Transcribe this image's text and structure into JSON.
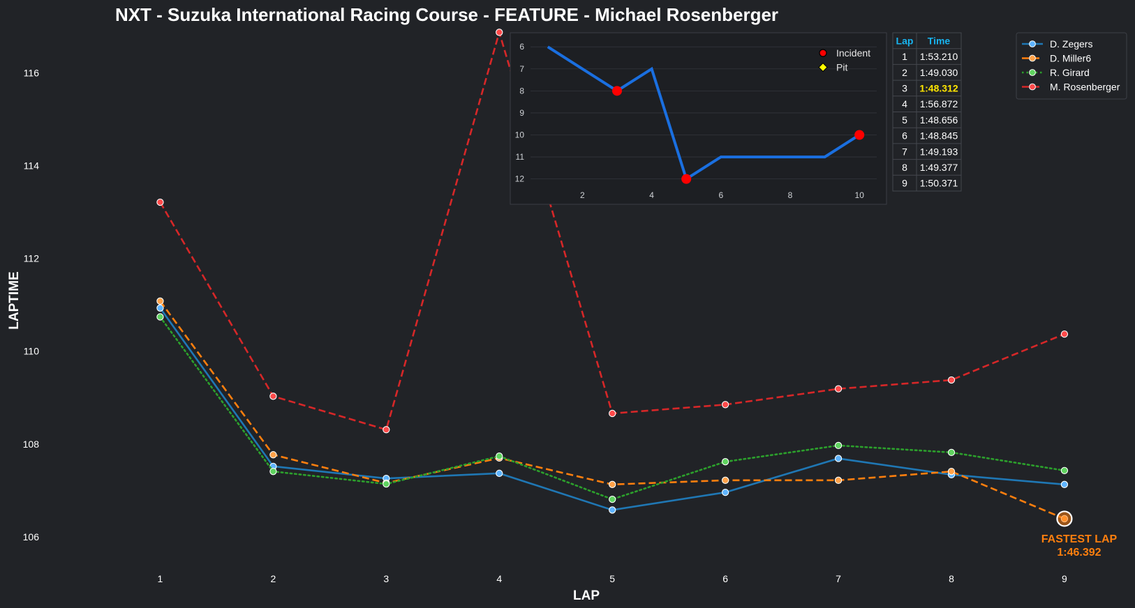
{
  "chart_data": [
    {
      "type": "line",
      "title": "NXT - Suzuka International Racing Course - FEATURE - Michael Rosenberger",
      "xlabel": "LAP",
      "ylabel": "LAPTIME",
      "categories": [
        1,
        2,
        3,
        4,
        5,
        6,
        7,
        8,
        9
      ],
      "xlim": [
        0.25,
        9.55
      ],
      "ylim": [
        105.4,
        116.95
      ],
      "yticks": [
        106,
        108,
        110,
        112,
        114,
        116
      ],
      "grid": false,
      "legend_position": "top-right",
      "series": [
        {
          "name": "D. Zegers",
          "color": "#1f77b4",
          "marker_color": "#5fb4ff",
          "line_style": "solid",
          "values": [
            110.93,
            107.52,
            107.26,
            107.37,
            106.58,
            106.96,
            107.69,
            107.34,
            107.13
          ]
        },
        {
          "name": "D. Miller6",
          "color": "#ff7f0e",
          "marker_color": "#ffa24a",
          "line_style": "dashed",
          "values": [
            111.08,
            107.77,
            107.16,
            107.7,
            107.13,
            107.22,
            107.22,
            107.41,
            106.392
          ]
        },
        {
          "name": "R. Girard",
          "color": "#2ca02c",
          "marker_color": "#5fd35f",
          "line_style": "dotted",
          "values": [
            110.74,
            107.41,
            107.14,
            107.74,
            106.81,
            107.62,
            107.97,
            107.82,
            107.43
          ]
        },
        {
          "name": "M. Rosenberger",
          "color": "#d62728",
          "marker_color": "#ff4a4a",
          "line_style": "dashed",
          "values": [
            113.21,
            109.03,
            108.31,
            116.87,
            108.66,
            108.85,
            109.19,
            109.38,
            110.37
          ]
        }
      ],
      "annotation": {
        "series": "D. Miller6",
        "lap": 9,
        "value": 106.392,
        "line1": "FASTEST LAP",
        "line2": "1:46.392",
        "color": "#ff7f0e"
      }
    },
    {
      "type": "line",
      "title": "",
      "xlabel": "",
      "ylabel": "",
      "x": [
        1,
        2,
        3,
        4,
        5,
        6,
        7,
        8,
        9,
        10
      ],
      "values": [
        6,
        7,
        8,
        7,
        12,
        11,
        11,
        11,
        11,
        10
      ],
      "xlim": [
        0.5,
        10.5
      ],
      "ylim": [
        12.55,
        5.55
      ],
      "y_inverted": true,
      "xticks": [
        2,
        4,
        6,
        8,
        10
      ],
      "yticks": [
        6,
        7,
        8,
        9,
        10,
        11,
        12
      ],
      "grid": true,
      "line_color": "#1a6fe0",
      "incidents": [
        3,
        5,
        10
      ],
      "pits": [],
      "legend_position": "top-right",
      "legend": [
        {
          "label": "Incident",
          "color": "#ff0000",
          "shape": "circle"
        },
        {
          "label": "Pit",
          "color": "#ffff00",
          "shape": "diamond"
        }
      ]
    },
    {
      "type": "table",
      "columns": [
        "Lap",
        "Time"
      ],
      "rows": [
        [
          "1",
          "1:53.210"
        ],
        [
          "2",
          "1:49.030"
        ],
        [
          "3",
          "1:48.312"
        ],
        [
          "4",
          "1:56.872"
        ],
        [
          "5",
          "1:48.656"
        ],
        [
          "6",
          "1:48.845"
        ],
        [
          "7",
          "1:49.193"
        ],
        [
          "8",
          "1:49.377"
        ],
        [
          "9",
          "1:50.371"
        ]
      ],
      "highlight_row": 2,
      "header_color": "#18b4f0",
      "highlight_color": "#ffe600"
    }
  ]
}
